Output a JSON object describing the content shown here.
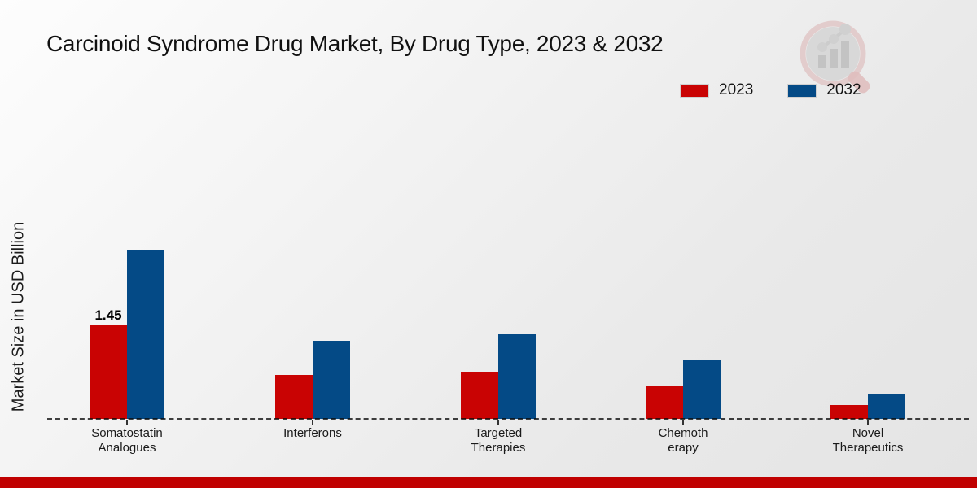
{
  "page": {
    "title": "Carcinoid Syndrome Drug Market, By Drug Type, 2023 & 2032"
  },
  "legend": {
    "items": [
      {
        "label": "2023",
        "color": "#c90303"
      },
      {
        "label": "2032",
        "color": "#044a86"
      }
    ]
  },
  "footer": {
    "accent_bar_color": "#c00000"
  },
  "logo": {
    "name": "magnifier-bar-chart-watermark"
  },
  "chart_data": {
    "type": "bar",
    "title": "Carcinoid Syndrome Drug Market, By Drug Type, 2023 & 2032",
    "xlabel": "",
    "ylabel": "Market Size in USD Billion",
    "categories": [
      "Somatostatin Analogues",
      "Interferons",
      "Targeted Therapies",
      "Chemotherapy",
      "Novel Therapeutics"
    ],
    "category_label_lines": [
      [
        "Somatostatin",
        "Analogues"
      ],
      [
        "Interferons"
      ],
      [
        "Targeted",
        "Therapies"
      ],
      [
        "Chemoth",
        "erapy"
      ],
      [
        "Novel",
        "Therapeutics"
      ]
    ],
    "series": [
      {
        "name": "2023",
        "color": "#c90303",
        "values": [
          1.45,
          0.68,
          0.73,
          0.52,
          0.21
        ]
      },
      {
        "name": "2032",
        "color": "#044a86",
        "values": [
          2.62,
          1.21,
          1.31,
          0.91,
          0.39
        ]
      }
    ],
    "data_labels": [
      {
        "category": 0,
        "series": 0,
        "text": "1.45"
      }
    ],
    "ylim": [
      0,
      3.3
    ],
    "grid": false,
    "legend_position": "top-right",
    "baseline_style": "dashed",
    "y_axis_ticks_visible": false
  }
}
